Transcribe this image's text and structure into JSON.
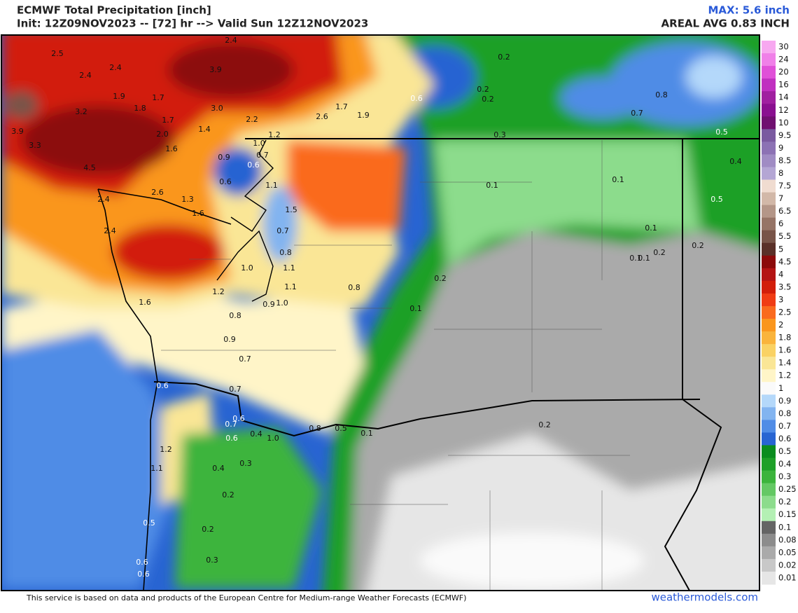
{
  "header": {
    "title": "ECMWF Total Precipitation [inch]",
    "subtitle": "Init: 12Z09NOV2023 -- [72] hr --> Valid Sun 12Z12NOV2023",
    "max": "MAX: 5.6 inch",
    "areal_avg": "AREAL AVG 0.83 INCH"
  },
  "legend": [
    {
      "label": "30",
      "color": "#f7a8f0"
    },
    {
      "label": "24",
      "color": "#f080e8"
    },
    {
      "label": "20",
      "color": "#e050d8"
    },
    {
      "label": "16",
      "color": "#c030c0"
    },
    {
      "label": "14",
      "color": "#a020a0"
    },
    {
      "label": "12",
      "color": "#8a1090"
    },
    {
      "label": "10",
      "color": "#701070"
    },
    {
      "label": "9.5",
      "color": "#7a5aa0"
    },
    {
      "label": "9",
      "color": "#8c72b4"
    },
    {
      "label": "8.5",
      "color": "#a08cc4"
    },
    {
      "label": "8",
      "color": "#b4a6d4"
    },
    {
      "label": "7.5",
      "color": "#f0dcd0"
    },
    {
      "label": "7",
      "color": "#d2b8a8"
    },
    {
      "label": "6.5",
      "color": "#b49688"
    },
    {
      "label": "6",
      "color": "#967466"
    },
    {
      "label": "5.5",
      "color": "#785448"
    },
    {
      "label": "5",
      "color": "#5a3028"
    },
    {
      "label": "4.5",
      "color": "#8c0a0a"
    },
    {
      "label": "4",
      "color": "#b41414"
    },
    {
      "label": "3.5",
      "color": "#d21e0a"
    },
    {
      "label": "3",
      "color": "#f03c14"
    },
    {
      "label": "2.5",
      "color": "#fa6a1e"
    },
    {
      "label": "2",
      "color": "#fa961e"
    },
    {
      "label": "1.8",
      "color": "#fab43c"
    },
    {
      "label": "1.6",
      "color": "#fad264"
    },
    {
      "label": "1.4",
      "color": "#fae696"
    },
    {
      "label": "1.2",
      "color": "#fff5c8"
    },
    {
      "label": "1",
      "color": "#fafafa"
    },
    {
      "label": "0.9",
      "color": "#b4d8fa"
    },
    {
      "label": "0.8",
      "color": "#82b4f0"
    },
    {
      "label": "0.7",
      "color": "#508ce6"
    },
    {
      "label": "0.6",
      "color": "#2864d2"
    },
    {
      "label": "0.5",
      "color": "#0a8c1e"
    },
    {
      "label": "0.4",
      "color": "#1ea028"
    },
    {
      "label": "0.3",
      "color": "#3cb43c"
    },
    {
      "label": "0.25",
      "color": "#64c864"
    },
    {
      "label": "0.2",
      "color": "#8cdc8c"
    },
    {
      "label": "0.15",
      "color": "#b4f0b4"
    },
    {
      "label": "0.1",
      "color": "#646464"
    },
    {
      "label": "0.08",
      "color": "#8c8c8c"
    },
    {
      "label": "0.05",
      "color": "#aaaaaa"
    },
    {
      "label": "0.02",
      "color": "#c8c8c8"
    },
    {
      "label": "0.01",
      "color": "#e6e6e6"
    }
  ],
  "map_labels": [
    "2.4",
    "3.9",
    "2.5",
    "2.4",
    "2.4",
    "1.9",
    "1.7",
    "1.8",
    "3.2",
    "3.9",
    "3.3",
    "4.5",
    "1.7",
    "2.0",
    "1.6",
    "3.0",
    "1.4",
    "2.2",
    "2.6",
    "1.7",
    "1.9",
    "1.2",
    "1.0",
    "0.9",
    "0.7",
    "0.6",
    "0.6",
    "1.1",
    "2.6",
    "1.3",
    "2.4",
    "1.6",
    "1.5",
    "2.4",
    "0.7",
    "0.8",
    "1.0",
    "1.1",
    "1.1",
    "1.2",
    "0.8",
    "1.6",
    "0.9",
    "1.0",
    "0.8",
    "0.9",
    "0.7",
    "0.6",
    "0.7",
    "0.6",
    "0.7",
    "0.6",
    "0.4",
    "1.0",
    "0.8",
    "0.5",
    "0.1",
    "1.2",
    "1.1",
    "0.4",
    "0.3",
    "0.2",
    "0.5",
    "0.2",
    "0.3",
    "0.6",
    "0.6",
    "0.2",
    "0.2",
    "0.2",
    "0.6",
    "0.3",
    "0.8",
    "0.7",
    "0.5",
    "0.4",
    "0.5",
    "0.1",
    "0.1",
    "0.1",
    "0.2",
    "0.1",
    "0.1",
    "0.2",
    "0.2",
    "0.1",
    "0.2"
  ],
  "footer": {
    "note": "This service is based on data and products of the European Centre for Medium-range Weather Forecasts (ECMWF)",
    "site": "weathermodels.com"
  }
}
